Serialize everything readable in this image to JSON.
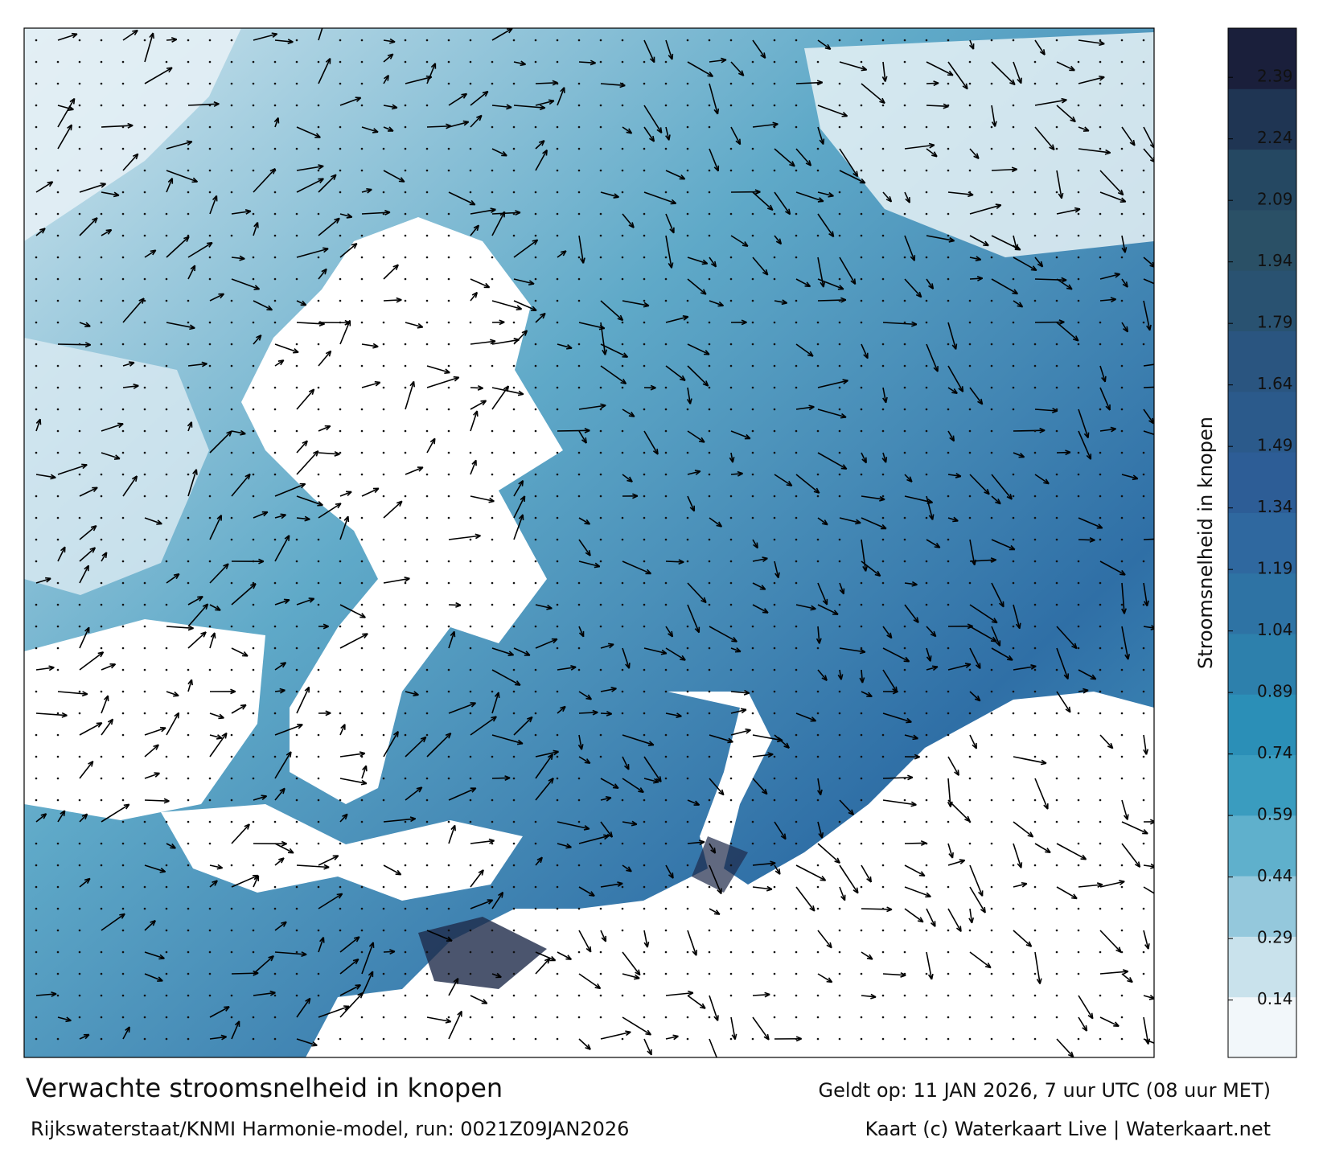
{
  "map": {
    "title": "Verwachte stroomsnelheid in knopen",
    "valid_time": "Geldt op: 11 JAN 2026, 7 uur UTC (08 uur MET)",
    "source": "Rijkswaterstaat/KNMI Harmonie-model, run: 0021Z09JAN2026",
    "credit": "Kaart (c) Waterkaart Live | Waterkaart.net"
  },
  "colorbar": {
    "label": "Stroomsnelheid in knopen",
    "lim": [
      0,
      2.51
    ],
    "ticks": [
      0.14,
      0.29,
      0.44,
      0.59,
      0.74,
      0.89,
      1.04,
      1.19,
      1.34,
      1.49,
      1.64,
      1.79,
      1.94,
      2.09,
      2.24,
      2.39
    ],
    "colors": [
      "#f2f7fa",
      "#c9e2ec",
      "#94c8dc",
      "#5fb0cc",
      "#3a9cbf",
      "#2b8fb7",
      "#2d80ac",
      "#2e73a4",
      "#2f689f",
      "#2d5d96",
      "#2b5a8b",
      "#2a5580",
      "#295271",
      "#2a5066",
      "#254862",
      "#1f3553",
      "#1a1f3b"
    ]
  }
}
